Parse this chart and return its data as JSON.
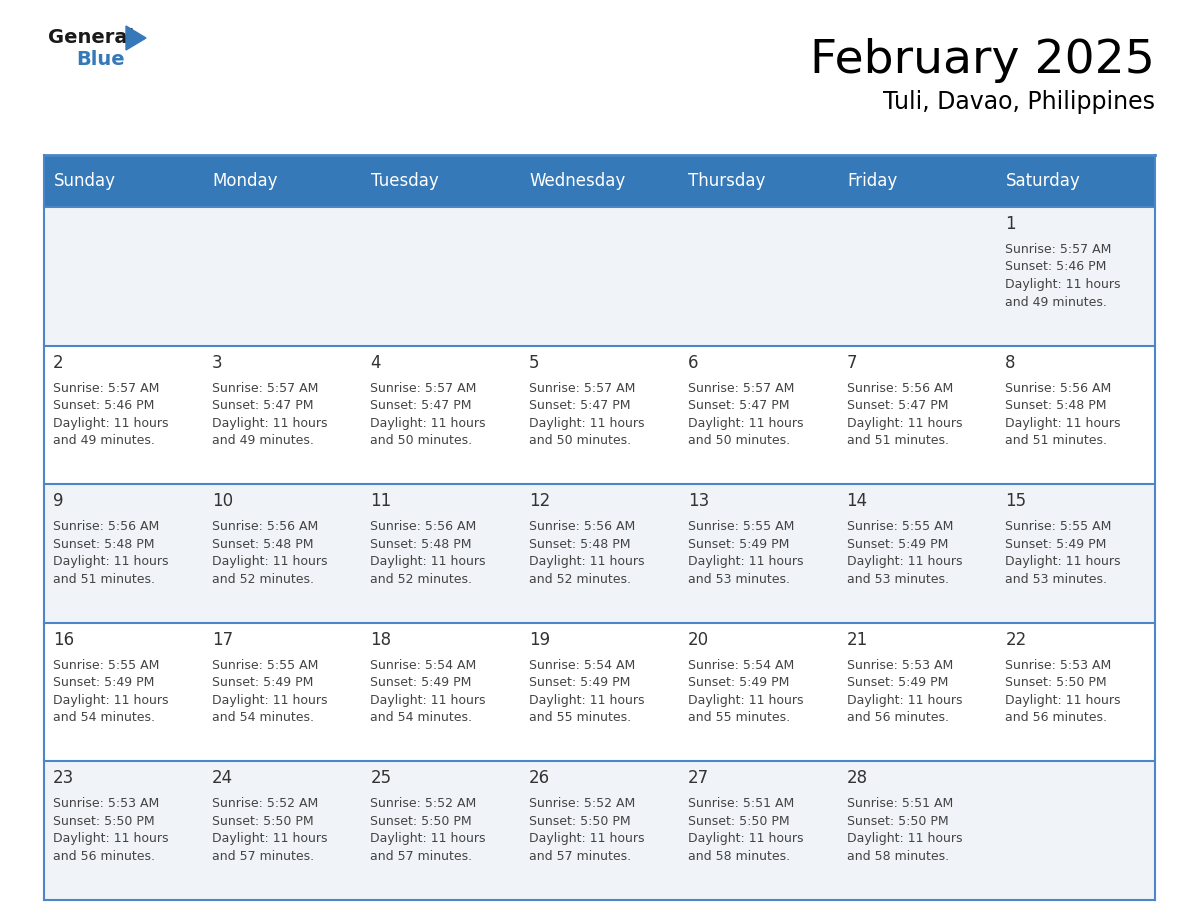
{
  "title": "February 2025",
  "subtitle": "Tuli, Davao, Philippines",
  "header_color": "#3579b8",
  "header_text_color": "#ffffff",
  "cell_bg_even": "#f0f4f8",
  "cell_bg_odd": "#ffffff",
  "day_number_color": "#333333",
  "text_color": "#444444",
  "border_color": "#4a86c8",
  "days_of_week": [
    "Sunday",
    "Monday",
    "Tuesday",
    "Wednesday",
    "Thursday",
    "Friday",
    "Saturday"
  ],
  "weeks": [
    [
      {
        "day": null,
        "sunrise": null,
        "sunset": null,
        "daylight_line1": null,
        "daylight_line2": null
      },
      {
        "day": null,
        "sunrise": null,
        "sunset": null,
        "daylight_line1": null,
        "daylight_line2": null
      },
      {
        "day": null,
        "sunrise": null,
        "sunset": null,
        "daylight_line1": null,
        "daylight_line2": null
      },
      {
        "day": null,
        "sunrise": null,
        "sunset": null,
        "daylight_line1": null,
        "daylight_line2": null
      },
      {
        "day": null,
        "sunrise": null,
        "sunset": null,
        "daylight_line1": null,
        "daylight_line2": null
      },
      {
        "day": null,
        "sunrise": null,
        "sunset": null,
        "daylight_line1": null,
        "daylight_line2": null
      },
      {
        "day": 1,
        "sunrise": "5:57 AM",
        "sunset": "5:46 PM",
        "daylight_line1": "Daylight: 11 hours",
        "daylight_line2": "and 49 minutes."
      }
    ],
    [
      {
        "day": 2,
        "sunrise": "5:57 AM",
        "sunset": "5:46 PM",
        "daylight_line1": "Daylight: 11 hours",
        "daylight_line2": "and 49 minutes."
      },
      {
        "day": 3,
        "sunrise": "5:57 AM",
        "sunset": "5:47 PM",
        "daylight_line1": "Daylight: 11 hours",
        "daylight_line2": "and 49 minutes."
      },
      {
        "day": 4,
        "sunrise": "5:57 AM",
        "sunset": "5:47 PM",
        "daylight_line1": "Daylight: 11 hours",
        "daylight_line2": "and 50 minutes."
      },
      {
        "day": 5,
        "sunrise": "5:57 AM",
        "sunset": "5:47 PM",
        "daylight_line1": "Daylight: 11 hours",
        "daylight_line2": "and 50 minutes."
      },
      {
        "day": 6,
        "sunrise": "5:57 AM",
        "sunset": "5:47 PM",
        "daylight_line1": "Daylight: 11 hours",
        "daylight_line2": "and 50 minutes."
      },
      {
        "day": 7,
        "sunrise": "5:56 AM",
        "sunset": "5:47 PM",
        "daylight_line1": "Daylight: 11 hours",
        "daylight_line2": "and 51 minutes."
      },
      {
        "day": 8,
        "sunrise": "5:56 AM",
        "sunset": "5:48 PM",
        "daylight_line1": "Daylight: 11 hours",
        "daylight_line2": "and 51 minutes."
      }
    ],
    [
      {
        "day": 9,
        "sunrise": "5:56 AM",
        "sunset": "5:48 PM",
        "daylight_line1": "Daylight: 11 hours",
        "daylight_line2": "and 51 minutes."
      },
      {
        "day": 10,
        "sunrise": "5:56 AM",
        "sunset": "5:48 PM",
        "daylight_line1": "Daylight: 11 hours",
        "daylight_line2": "and 52 minutes."
      },
      {
        "day": 11,
        "sunrise": "5:56 AM",
        "sunset": "5:48 PM",
        "daylight_line1": "Daylight: 11 hours",
        "daylight_line2": "and 52 minutes."
      },
      {
        "day": 12,
        "sunrise": "5:56 AM",
        "sunset": "5:48 PM",
        "daylight_line1": "Daylight: 11 hours",
        "daylight_line2": "and 52 minutes."
      },
      {
        "day": 13,
        "sunrise": "5:55 AM",
        "sunset": "5:49 PM",
        "daylight_line1": "Daylight: 11 hours",
        "daylight_line2": "and 53 minutes."
      },
      {
        "day": 14,
        "sunrise": "5:55 AM",
        "sunset": "5:49 PM",
        "daylight_line1": "Daylight: 11 hours",
        "daylight_line2": "and 53 minutes."
      },
      {
        "day": 15,
        "sunrise": "5:55 AM",
        "sunset": "5:49 PM",
        "daylight_line1": "Daylight: 11 hours",
        "daylight_line2": "and 53 minutes."
      }
    ],
    [
      {
        "day": 16,
        "sunrise": "5:55 AM",
        "sunset": "5:49 PM",
        "daylight_line1": "Daylight: 11 hours",
        "daylight_line2": "and 54 minutes."
      },
      {
        "day": 17,
        "sunrise": "5:55 AM",
        "sunset": "5:49 PM",
        "daylight_line1": "Daylight: 11 hours",
        "daylight_line2": "and 54 minutes."
      },
      {
        "day": 18,
        "sunrise": "5:54 AM",
        "sunset": "5:49 PM",
        "daylight_line1": "Daylight: 11 hours",
        "daylight_line2": "and 54 minutes."
      },
      {
        "day": 19,
        "sunrise": "5:54 AM",
        "sunset": "5:49 PM",
        "daylight_line1": "Daylight: 11 hours",
        "daylight_line2": "and 55 minutes."
      },
      {
        "day": 20,
        "sunrise": "5:54 AM",
        "sunset": "5:49 PM",
        "daylight_line1": "Daylight: 11 hours",
        "daylight_line2": "and 55 minutes."
      },
      {
        "day": 21,
        "sunrise": "5:53 AM",
        "sunset": "5:49 PM",
        "daylight_line1": "Daylight: 11 hours",
        "daylight_line2": "and 56 minutes."
      },
      {
        "day": 22,
        "sunrise": "5:53 AM",
        "sunset": "5:50 PM",
        "daylight_line1": "Daylight: 11 hours",
        "daylight_line2": "and 56 minutes."
      }
    ],
    [
      {
        "day": 23,
        "sunrise": "5:53 AM",
        "sunset": "5:50 PM",
        "daylight_line1": "Daylight: 11 hours",
        "daylight_line2": "and 56 minutes."
      },
      {
        "day": 24,
        "sunrise": "5:52 AM",
        "sunset": "5:50 PM",
        "daylight_line1": "Daylight: 11 hours",
        "daylight_line2": "and 57 minutes."
      },
      {
        "day": 25,
        "sunrise": "5:52 AM",
        "sunset": "5:50 PM",
        "daylight_line1": "Daylight: 11 hours",
        "daylight_line2": "and 57 minutes."
      },
      {
        "day": 26,
        "sunrise": "5:52 AM",
        "sunset": "5:50 PM",
        "daylight_line1": "Daylight: 11 hours",
        "daylight_line2": "and 57 minutes."
      },
      {
        "day": 27,
        "sunrise": "5:51 AM",
        "sunset": "5:50 PM",
        "daylight_line1": "Daylight: 11 hours",
        "daylight_line2": "and 58 minutes."
      },
      {
        "day": 28,
        "sunrise": "5:51 AM",
        "sunset": "5:50 PM",
        "daylight_line1": "Daylight: 11 hours",
        "daylight_line2": "and 58 minutes."
      },
      {
        "day": null,
        "sunrise": null,
        "sunset": null,
        "daylight_line1": null,
        "daylight_line2": null
      }
    ]
  ]
}
